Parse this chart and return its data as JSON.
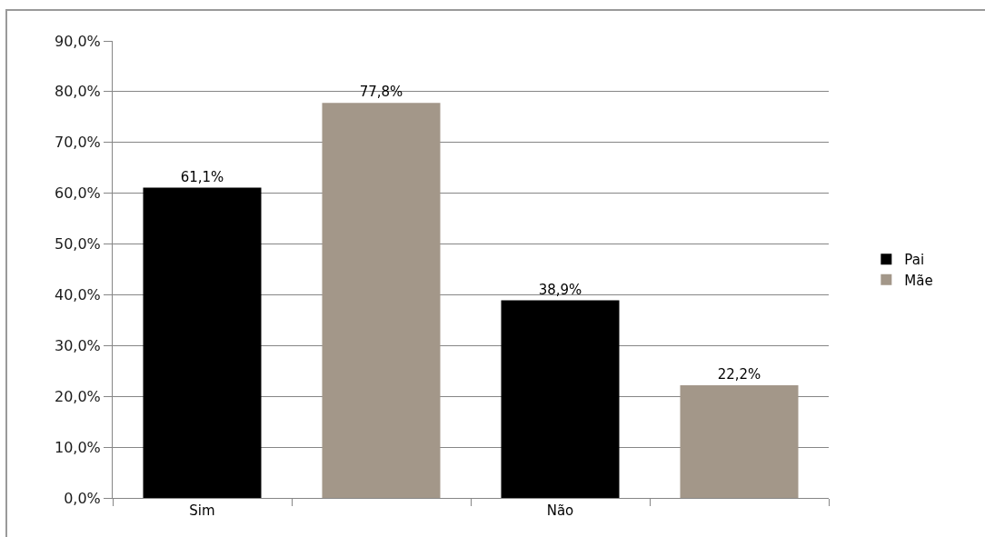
{
  "chart_data": {
    "type": "bar",
    "categories": [
      "Sim",
      null,
      "Não",
      null
    ],
    "series": [
      {
        "name": "Pai",
        "color": "#000000",
        "values": [
          61.1,
          null,
          38.9,
          null
        ],
        "value_labels": [
          "61,1%",
          null,
          "38,9%",
          null
        ]
      },
      {
        "name": "Mãe",
        "color": "#a39789",
        "values": [
          null,
          77.8,
          null,
          22.2
        ],
        "value_labels": [
          null,
          "77,8%",
          null,
          "22,2%"
        ]
      }
    ],
    "ylim": [
      0,
      90
    ],
    "yticks": [
      {
        "value": 0,
        "label": "0,0%"
      },
      {
        "value": 10,
        "label": "10,0%"
      },
      {
        "value": 20,
        "label": "20,0%"
      },
      {
        "value": 30,
        "label": "30,0%"
      },
      {
        "value": 40,
        "label": "40,0%"
      },
      {
        "value": 50,
        "label": "50,0%"
      },
      {
        "value": 60,
        "label": "60,0%"
      },
      {
        "value": 70,
        "label": "70,0%"
      },
      {
        "value": 80,
        "label": "80,0%"
      },
      {
        "value": 90,
        "label": "90,0%"
      }
    ],
    "grid": "y",
    "legend": "right"
  }
}
